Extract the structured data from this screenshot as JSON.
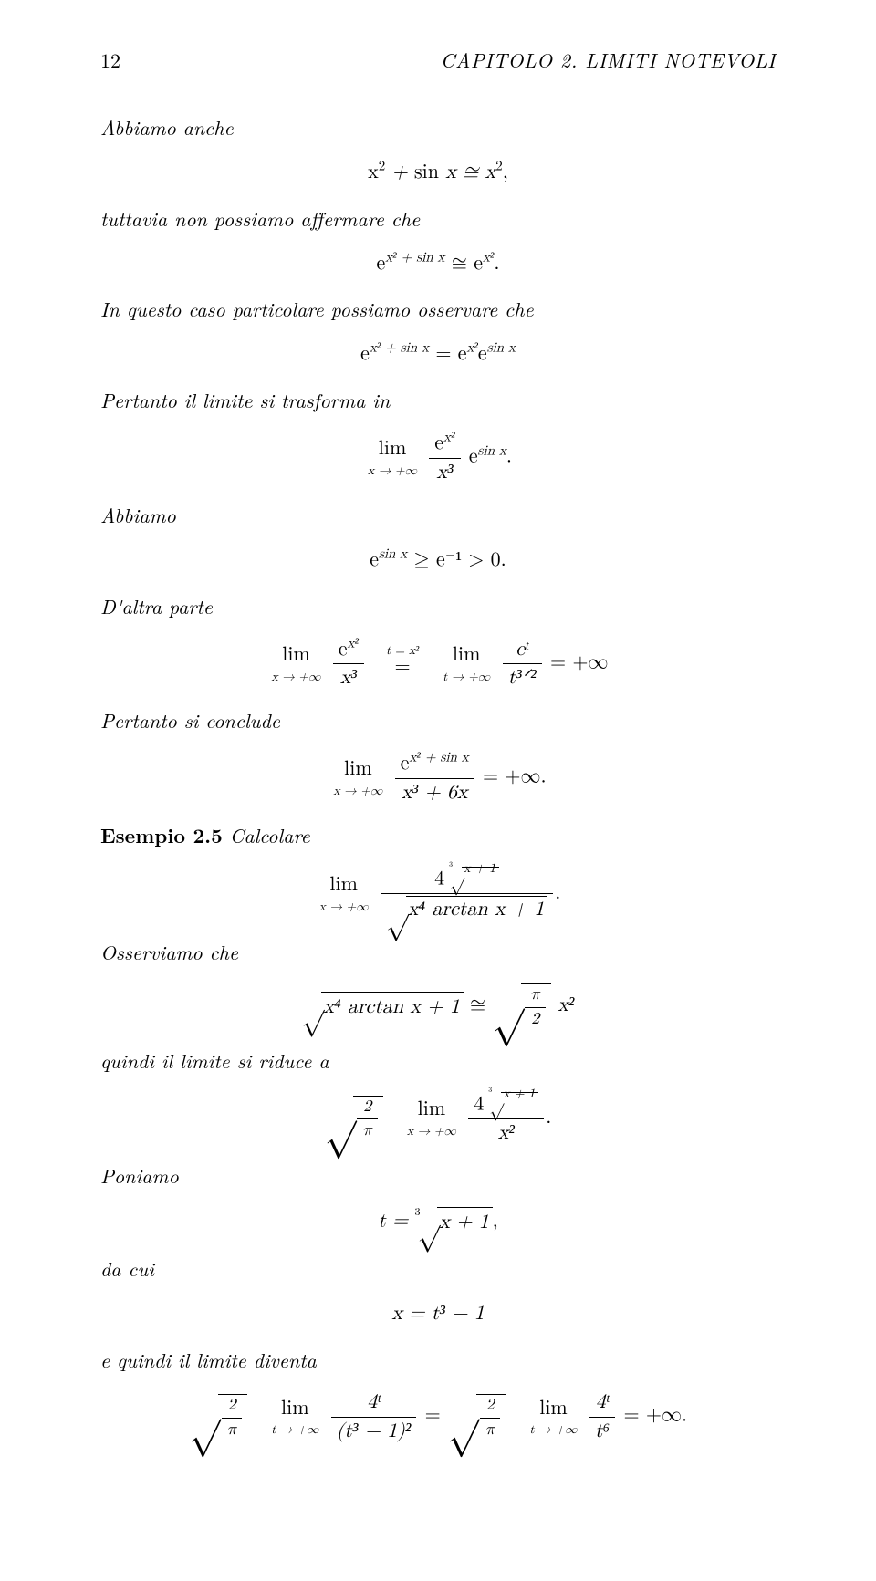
{
  "header": {
    "page_number": "12",
    "chapter": "CAPITOLO 2.   LIMITI NOTEVOLI"
  },
  "body": {
    "p1": "Abbiamo anche",
    "eq1": "x² + sin x ≅ x²,",
    "p2": "tuttavia non possiamo affermare che",
    "eq2_lhs": "e",
    "eq2_exp1": "x² + sin x",
    "eq2_rel": " ≅ ",
    "eq2_exp2": "x²",
    "eq2_dot": ".",
    "p3": "In questo caso particolare possiamo osservare che",
    "eq3_exp2": "x²",
    "eq3_exp1": "x² + sin x",
    "eq3_mid": " = ",
    "eq3_exp3": "sin x",
    "p4": "Pertanto il limite si trasforma in",
    "lim_sym": "lim",
    "lim_xinf": "x → +∞",
    "lim_tinf": "t → +∞",
    "eq4_num_exp": "x²",
    "eq4_den": "x³",
    "eq4_tail_exp": "sin x",
    "eq4_dot": ".",
    "p5": "Abbiamo",
    "eq5_lhs_exp": "sin x",
    "eq5_rhs": " ≥ e⁻¹ > 0.",
    "p6": "D'altra parte",
    "eq6_num_exp": "x²",
    "eq6_den": "x³",
    "eq6_subst": "t = x²",
    "eq6_eq": "=",
    "eq6_num2": "eᵗ",
    "eq6_den2": "t³ᐟ²",
    "eq6_tail": " = +∞",
    "p7": "Pertanto si conclude",
    "eq7_num_exp": "x² + sin x",
    "eq7_den": "x³ + 6x",
    "eq7_tail": " = +∞.",
    "ex_label": "Esempio 2.5",
    "ex_text": " Calcolare",
    "eq8_num_base": "4",
    "eq8_num_root_idx": "3",
    "eq8_num_root_arg": "x + 1",
    "eq8_den_arg": "x⁴ arctan x + 1",
    "eq8_dot": ".",
    "p9": "Osserviamo che",
    "eq9_lhs_arg": "x⁴ arctan x + 1",
    "eq9_rel": " ≅ ",
    "eq9_small_num": "π",
    "eq9_small_den": "2",
    "eq9_tail": " x²",
    "p10": "quindi il limite si riduce a",
    "eq10_small_num": "2",
    "eq10_small_den": "π",
    "eq10_num_base": "4",
    "eq10_den": "x²",
    "eq10_dot": ".",
    "p11": "Poniamo",
    "eq11_lhs": "t = ",
    "eq11_root_idx": "3",
    "eq11_root_arg": "x + 1",
    "eq11_comma": ",",
    "p12": "da cui",
    "eq12": "x = t³ − 1",
    "p13": "e quindi il limite diventa",
    "eq13_num": "4ᵗ",
    "eq13_den_inner": "(t³ − 1)²",
    "eq13_mid": " = ",
    "eq13_den2": "t⁶",
    "eq13_tail": " = +∞."
  }
}
